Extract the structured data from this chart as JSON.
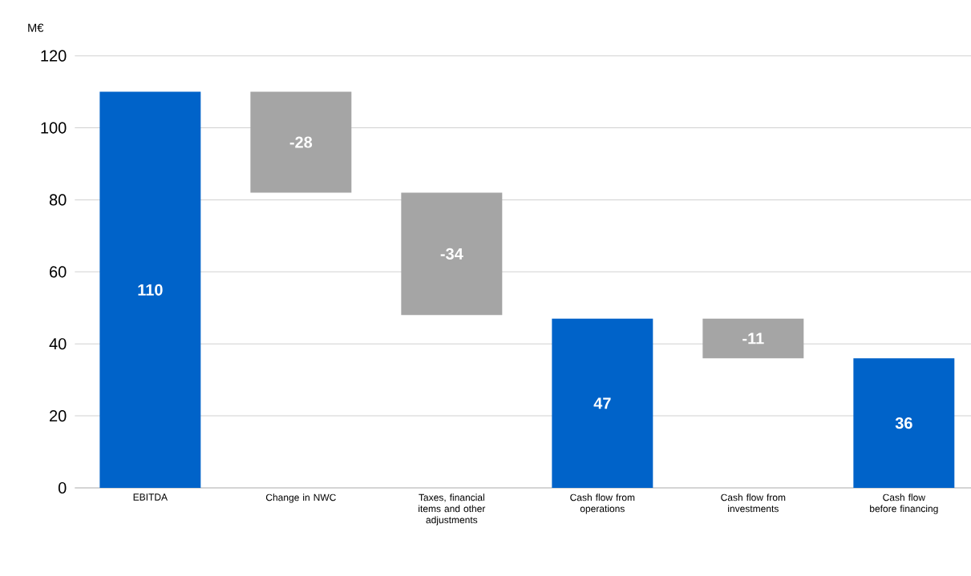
{
  "chart_data": {
    "type": "bar",
    "ylabel": "M€",
    "categories": [
      "EBITDA",
      "Change in NWC",
      "Taxes, financial items and other adjustments",
      "Cash flow from operations",
      "Cash flow from investments",
      "Cash flow before financing"
    ],
    "values": [
      110,
      -28,
      -34,
      47,
      -11,
      36
    ],
    "base": [
      0,
      110,
      82,
      0,
      47,
      0
    ],
    "colors": [
      "#0063c9",
      "#a5a5a5",
      "#a5a5a5",
      "#0063c9",
      "#a5a5a5",
      "#0063c9"
    ],
    "value_labels": [
      "110",
      "-28",
      "-34",
      "47",
      "-11",
      "36"
    ],
    "ylim": [
      0,
      120
    ],
    "yticks": [
      0,
      20,
      40,
      60,
      80,
      100,
      120
    ],
    "grid": "y"
  }
}
